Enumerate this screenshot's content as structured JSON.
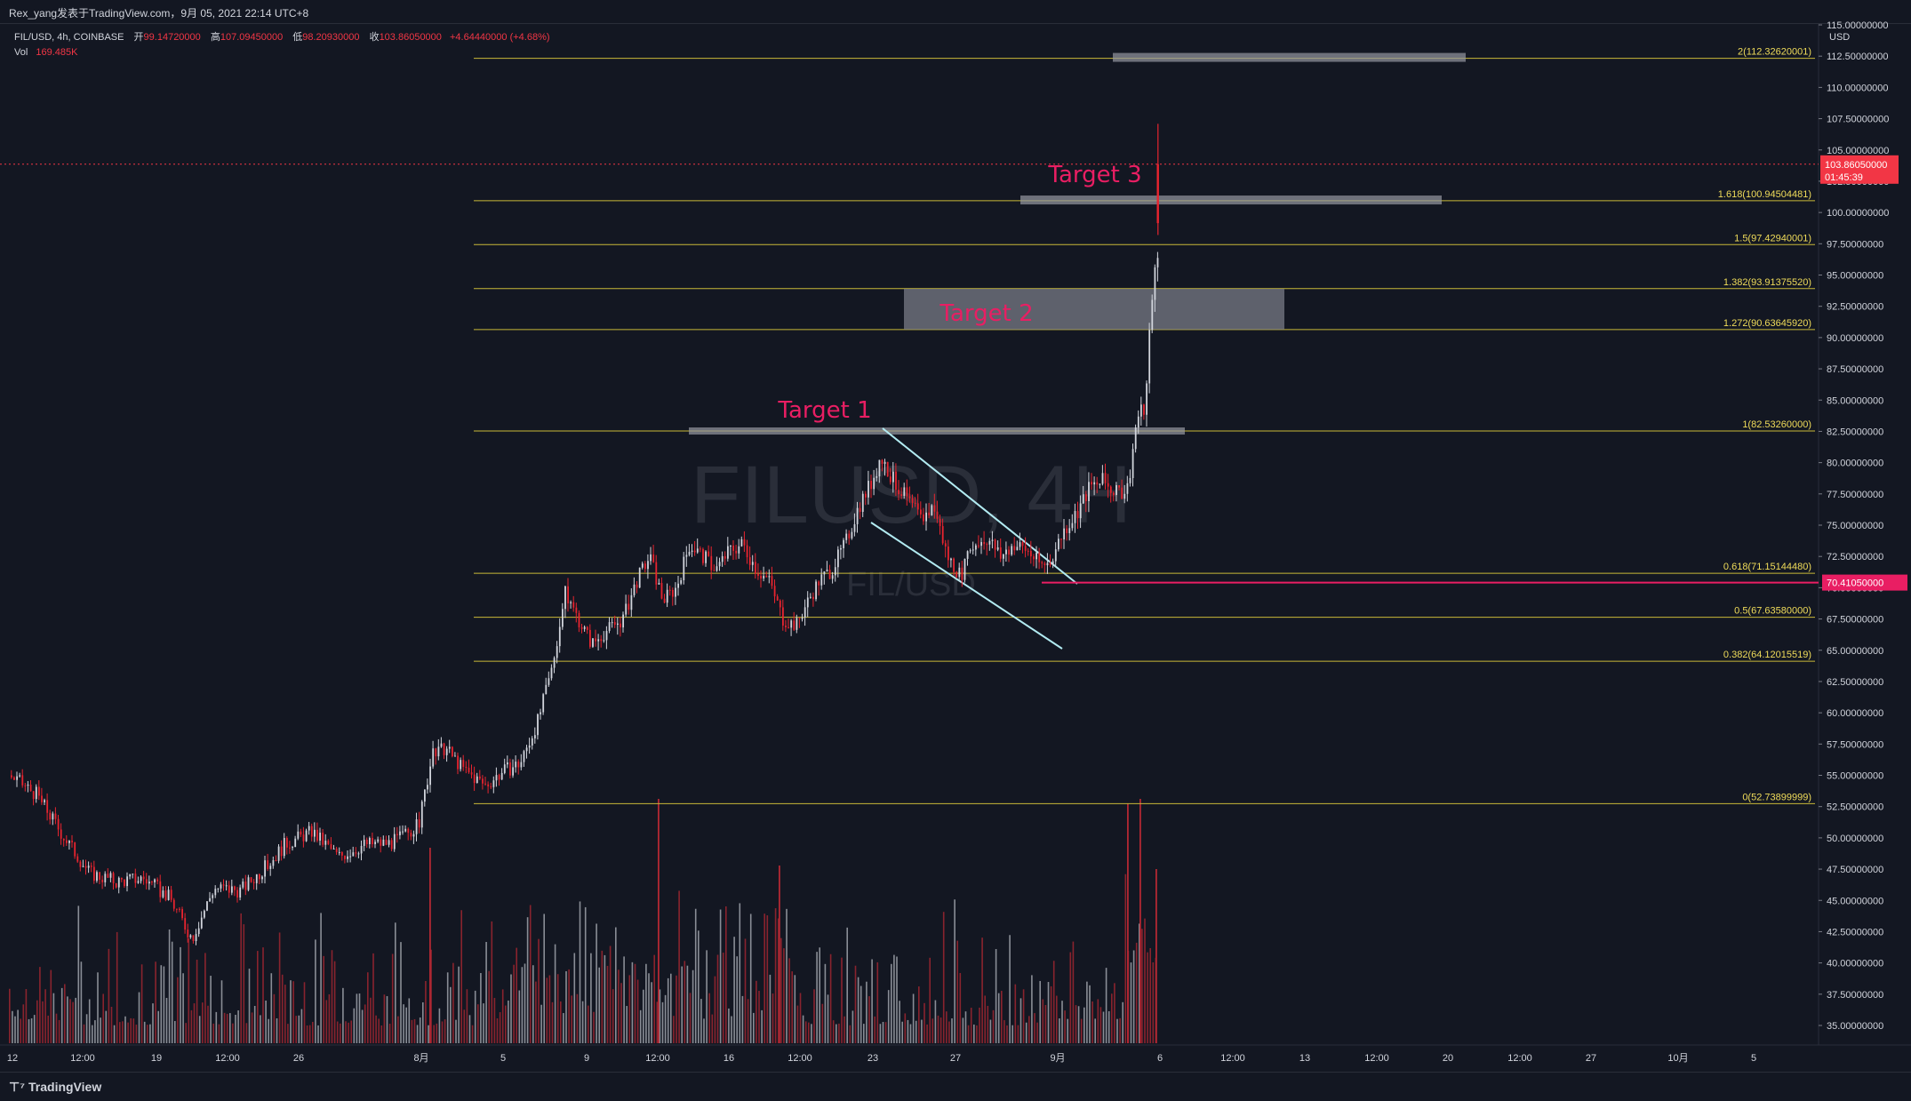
{
  "header": {
    "title": "Rex_yang发表于TradingView.com，9月 05, 2021 22:14 UTC+8"
  },
  "legend": {
    "symbol": "FIL/USD, 4h, COINBASE",
    "open_label": "开",
    "open": "99.14720000",
    "high_label": "高",
    "high": "107.09450000",
    "low_label": "低",
    "low": "98.20930000",
    "close_label": "收",
    "close": "103.86050000",
    "change": "+4.64440000 (+4.68%)",
    "vol_label": "Vol",
    "vol": "169.485K"
  },
  "watermark": {
    "symbol": "FILUSD, 4H",
    "pair": "FIL/USD"
  },
  "price_axis": {
    "unit": "USD",
    "current_price": "103.86050000",
    "countdown": "01:45:39",
    "marker_price": "70.41050000"
  },
  "footer": {
    "brand": "TradingView"
  },
  "chart_data": {
    "type": "candlestick",
    "y_range": [
      32.5,
      115.0
    ],
    "y_ticks": [
      "115.00000000",
      "112.50000000",
      "110.00000000",
      "107.50000000",
      "105.00000000",
      "102.50000000",
      "100.00000000",
      "97.50000000",
      "95.00000000",
      "92.50000000",
      "90.00000000",
      "87.50000000",
      "85.00000000",
      "82.50000000",
      "80.00000000",
      "77.50000000",
      "75.00000000",
      "72.50000000",
      "70.00000000",
      "67.50000000",
      "65.00000000",
      "62.50000000",
      "60.00000000",
      "57.50000000",
      "55.00000000",
      "52.50000000",
      "50.00000000",
      "47.50000000",
      "45.00000000",
      "42.50000000",
      "40.00000000",
      "37.50000000",
      "35.00000000"
    ],
    "x_ticks": [
      "12",
      "12:00",
      "19",
      "12:00",
      "26",
      "8月",
      "5",
      "9",
      "12:00",
      "16",
      "12:00",
      "23",
      "27",
      "9月",
      "6",
      "12:00",
      "13",
      "12:00",
      "20",
      "12:00",
      "27",
      "10月",
      "5"
    ],
    "fib_levels": [
      {
        "label": "2(112.32620001)",
        "value": 112.3262
      },
      {
        "label": "1.618(100.94504481)",
        "value": 100.945
      },
      {
        "label": "1.5(97.42940001)",
        "value": 97.4294
      },
      {
        "label": "1.382(93.91375520)",
        "value": 93.9138
      },
      {
        "label": "1.272(90.63645920)",
        "value": 90.6365
      },
      {
        "label": "1(82.53260000)",
        "value": 82.5326
      },
      {
        "label": "0.618(71.15144480)",
        "value": 71.1514
      },
      {
        "label": "0.5(67.63580000)",
        "value": 67.6358
      },
      {
        "label": "0.382(64.12015519)",
        "value": 64.1202
      },
      {
        "label": "0(52.73899999)",
        "value": 52.739
      }
    ],
    "targets": [
      {
        "label": "Target 1",
        "value": 82.53
      },
      {
        "label": "Target 2",
        "value": 92.3
      },
      {
        "label": "Target 3",
        "value": 101.0
      }
    ],
    "price_path": [
      [
        0,
        55.5
      ],
      [
        40,
        53.5
      ],
      [
        70,
        50.2
      ],
      [
        100,
        47.2
      ],
      [
        130,
        46.5
      ],
      [
        160,
        46.8
      ],
      [
        190,
        45.2
      ],
      [
        215,
        42.0
      ],
      [
        240,
        46.0
      ],
      [
        270,
        45.8
      ],
      [
        300,
        47.8
      ],
      [
        320,
        49.5
      ],
      [
        350,
        50.5
      ],
      [
        380,
        48.5
      ],
      [
        410,
        49.5
      ],
      [
        440,
        49.6
      ],
      [
        470,
        51.0
      ],
      [
        485,
        56.5
      ],
      [
        500,
        57.2
      ],
      [
        520,
        55.5
      ],
      [
        545,
        54.2
      ],
      [
        565,
        55.3
      ],
      [
        585,
        56.0
      ],
      [
        605,
        59.5
      ],
      [
        620,
        63.5
      ],
      [
        635,
        69.5
      ],
      [
        650,
        67.5
      ],
      [
        665,
        65.5
      ],
      [
        680,
        66.5
      ],
      [
        700,
        67.5
      ],
      [
        715,
        70.5
      ],
      [
        730,
        72.5
      ],
      [
        745,
        69.0
      ],
      [
        760,
        70.0
      ],
      [
        775,
        73.5
      ],
      [
        790,
        72.5
      ],
      [
        805,
        71.5
      ],
      [
        820,
        73.0
      ],
      [
        835,
        73.5
      ],
      [
        850,
        71.5
      ],
      [
        865,
        70.5
      ],
      [
        880,
        67.5
      ],
      [
        895,
        67.0
      ],
      [
        905,
        68.5
      ],
      [
        920,
        70.5
      ],
      [
        935,
        71.5
      ],
      [
        950,
        73.5
      ],
      [
        965,
        76.5
      ],
      [
        980,
        78.5
      ],
      [
        990,
        80.5
      ],
      [
        1005,
        78.5
      ],
      [
        1020,
        77.0
      ],
      [
        1035,
        75.5
      ],
      [
        1050,
        76.5
      ],
      [
        1065,
        72.5
      ],
      [
        1080,
        71.0
      ],
      [
        1095,
        73.5
      ],
      [
        1110,
        74.0
      ],
      [
        1125,
        72.5
      ],
      [
        1140,
        73.5
      ],
      [
        1155,
        73.0
      ],
      [
        1170,
        71.8
      ],
      [
        1180,
        72.0
      ],
      [
        1195,
        74.5
      ],
      [
        1210,
        76.0
      ],
      [
        1225,
        78.0
      ],
      [
        1240,
        78.5
      ],
      [
        1255,
        77.5
      ],
      [
        1268,
        78.0
      ],
      [
        1278,
        83.5
      ],
      [
        1288,
        84.5
      ],
      [
        1295,
        93.5
      ],
      [
        1302,
        96.5
      ],
      [
        1308,
        94.0
      ],
      [
        1314,
        100.5
      ],
      [
        1320,
        99.5
      ],
      [
        1326,
        103.86
      ]
    ]
  }
}
